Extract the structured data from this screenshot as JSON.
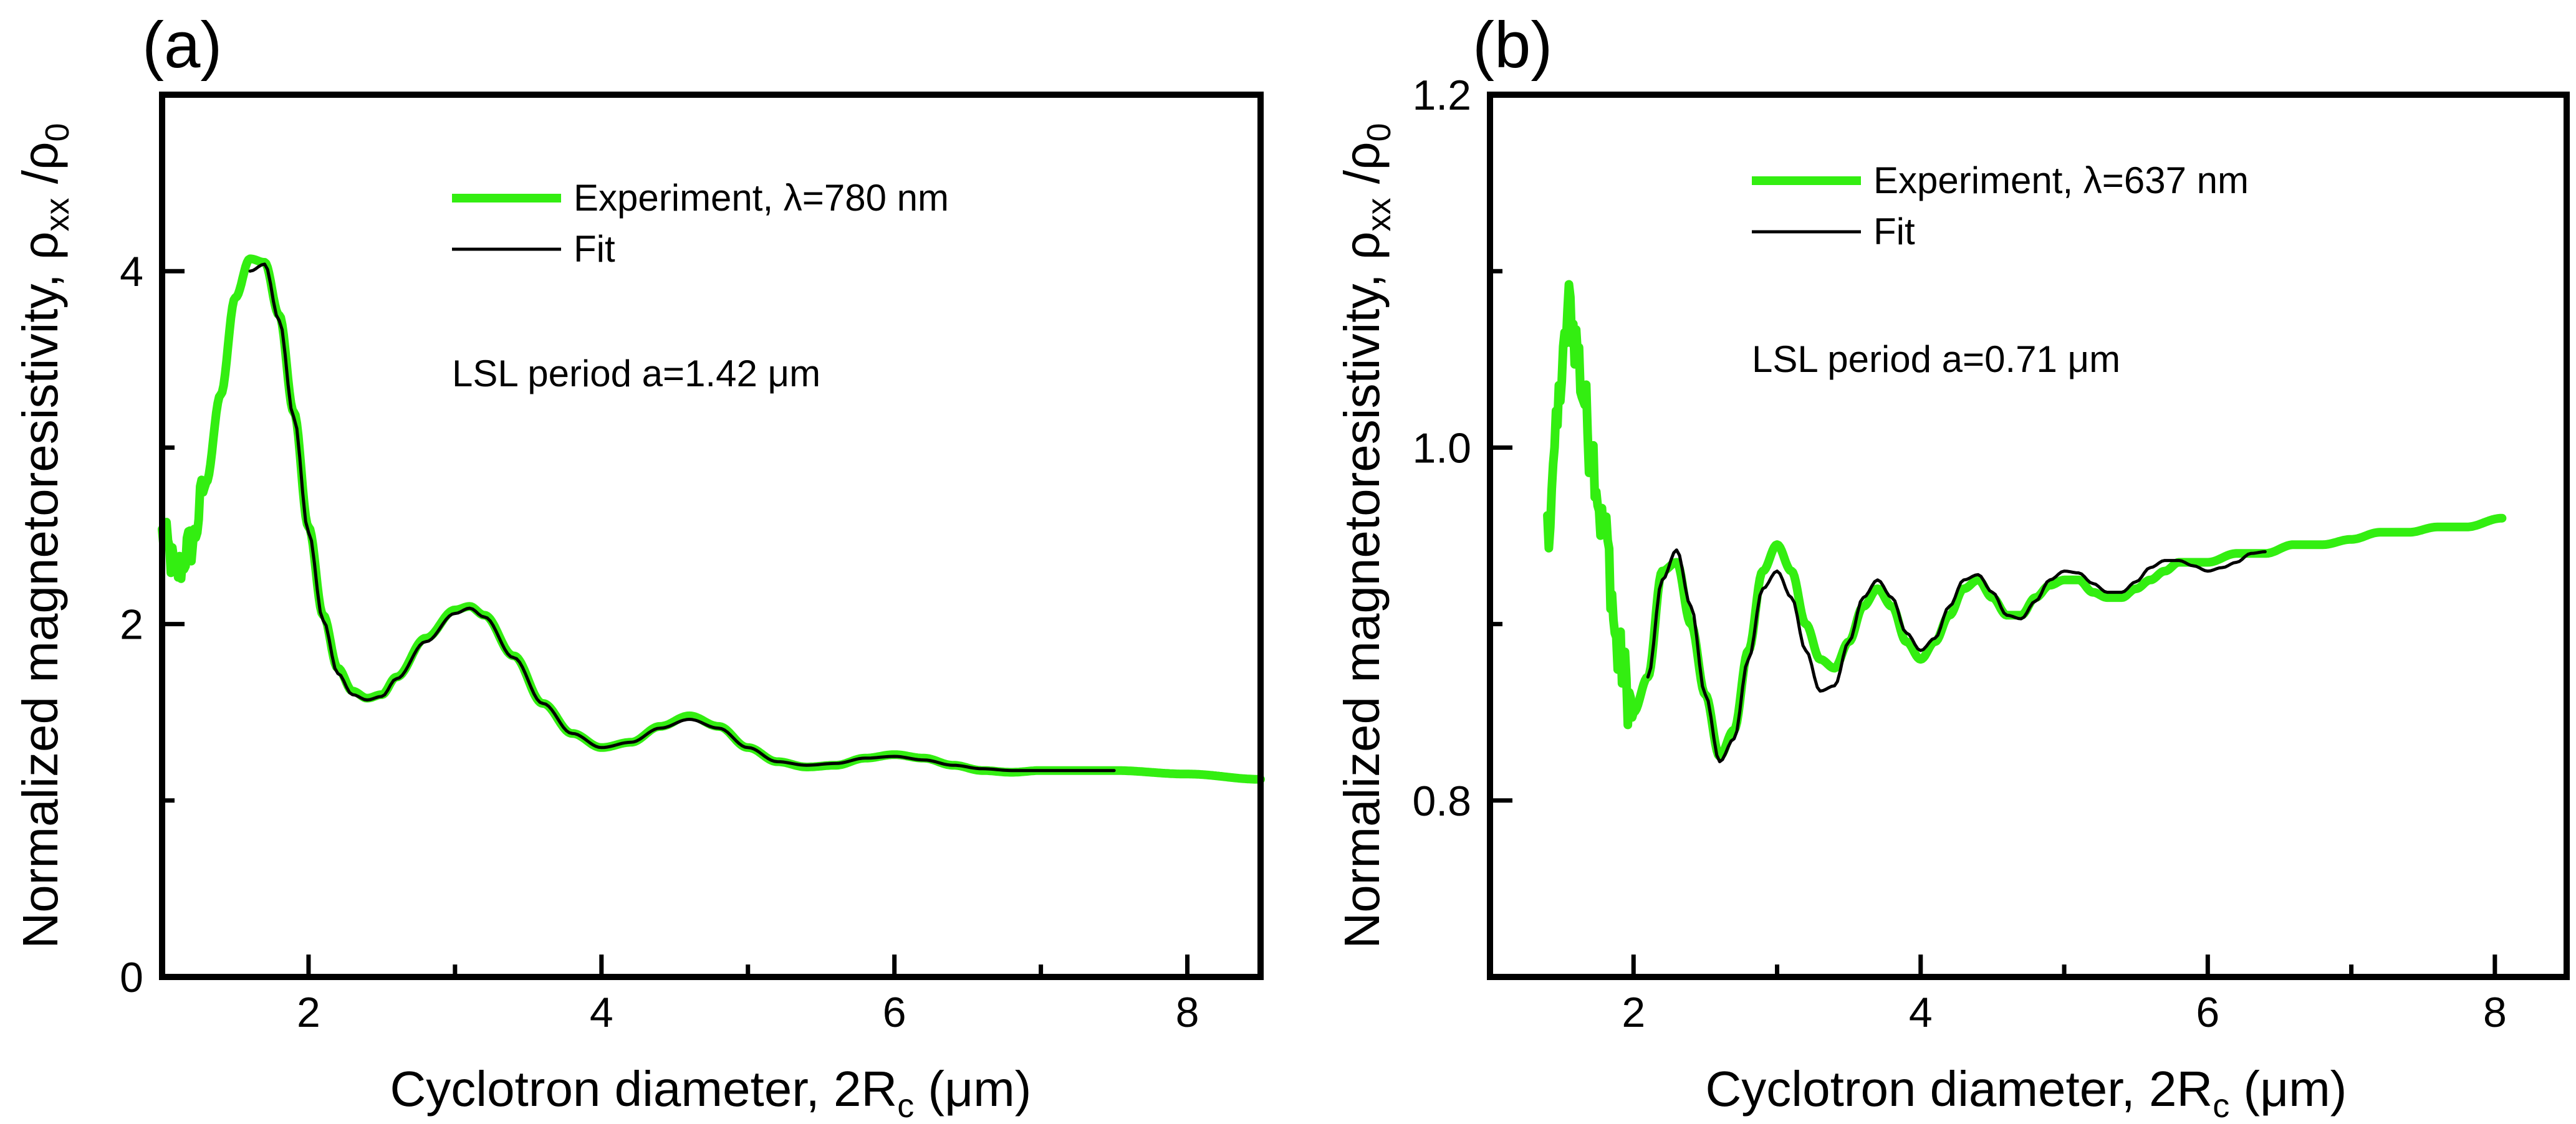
{
  "chart_data": [
    {
      "type": "line",
      "panel_label": "(a)",
      "title": "",
      "xlabel": "Cyclotron diameter, 2R",
      "xlabel_sub": "c",
      "xlabel_unit": " (μm)",
      "ylabel": "Normalized magnetoresistivity, ρ",
      "ylabel_sub": "xx",
      "ylabel_tail": " /ρ",
      "ylabel_tail_sub": "0",
      "xlim": [
        1.0,
        8.5
      ],
      "ylim": [
        0,
        5
      ],
      "xticks": [
        2,
        4,
        6,
        8
      ],
      "xminor": [
        3,
        5,
        7
      ],
      "yticks": [
        0,
        2,
        4
      ],
      "yminor": [
        1,
        3
      ],
      "annotation": "LSL period a=1.42 μm",
      "legend_position": "top-right",
      "series": [
        {
          "name": "Experiment, λ=780 nm",
          "color": "#33ee11",
          "style": "thick",
          "noise_below_x": 1.3,
          "noise_amp": 0.12,
          "x": [
            1.0,
            1.1,
            1.2,
            1.3,
            1.4,
            1.5,
            1.6,
            1.7,
            1.8,
            1.9,
            2.0,
            2.1,
            2.2,
            2.3,
            2.4,
            2.5,
            2.6,
            2.8,
            3.0,
            3.1,
            3.2,
            3.4,
            3.6,
            3.8,
            4.0,
            4.2,
            4.4,
            4.6,
            4.8,
            5.0,
            5.2,
            5.4,
            5.6,
            5.8,
            6.0,
            6.2,
            6.4,
            6.6,
            6.8,
            7.0,
            7.5,
            8.0,
            8.5
          ],
          "y": [
            2.5,
            2.3,
            2.45,
            2.8,
            3.3,
            3.85,
            4.07,
            4.05,
            3.75,
            3.2,
            2.55,
            2.05,
            1.75,
            1.62,
            1.58,
            1.6,
            1.7,
            1.92,
            2.08,
            2.1,
            2.05,
            1.82,
            1.55,
            1.38,
            1.3,
            1.33,
            1.42,
            1.48,
            1.42,
            1.3,
            1.22,
            1.19,
            1.2,
            1.24,
            1.26,
            1.24,
            1.2,
            1.17,
            1.16,
            1.17,
            1.17,
            1.15,
            1.12
          ]
        },
        {
          "name": "Fit",
          "color": "#000000",
          "style": "thin",
          "x": [
            1.6,
            1.7,
            1.8,
            1.9,
            2.0,
            2.1,
            2.2,
            2.3,
            2.4,
            2.5,
            2.6,
            2.8,
            3.0,
            3.1,
            3.2,
            3.4,
            3.6,
            3.8,
            4.0,
            4.2,
            4.4,
            4.6,
            4.8,
            5.0,
            5.2,
            5.4,
            5.6,
            5.8,
            6.0,
            6.2,
            6.4,
            6.6,
            6.8,
            7.0,
            7.5
          ],
          "y": [
            4.0,
            4.04,
            3.72,
            3.17,
            2.52,
            2.02,
            1.72,
            1.6,
            1.57,
            1.59,
            1.69,
            1.9,
            2.06,
            2.09,
            2.04,
            1.81,
            1.55,
            1.38,
            1.3,
            1.33,
            1.41,
            1.46,
            1.41,
            1.3,
            1.22,
            1.2,
            1.21,
            1.24,
            1.25,
            1.23,
            1.2,
            1.18,
            1.17,
            1.17,
            1.17
          ]
        }
      ]
    },
    {
      "type": "line",
      "panel_label": "(b)",
      "title": "",
      "xlabel": "Cyclotron diameter, 2R",
      "xlabel_sub": "c",
      "xlabel_unit": " (μm)",
      "ylabel": "Normalized magnetoresistivity, ρ",
      "ylabel_sub": "xx",
      "ylabel_tail": " /ρ",
      "ylabel_tail_sub": "0",
      "xlim": [
        1.0,
        8.5
      ],
      "ylim": [
        0.7,
        1.2
      ],
      "xticks": [
        2,
        4,
        6,
        8
      ],
      "xminor": [
        3,
        5,
        7
      ],
      "ytick_values": [
        0.8,
        1.0,
        1.2
      ],
      "ytick_labels": [
        "0.8",
        "1.0",
        "1.2"
      ],
      "yminor": [
        0.9,
        1.1
      ],
      "annotation": "LSL period a=0.71 μm",
      "legend_position": "top-right",
      "series": [
        {
          "name": "Experiment, λ=637 nm",
          "color": "#33ee11",
          "style": "thick",
          "noise_below_x": 2.0,
          "noise_amp": 0.018,
          "x": [
            1.4,
            1.45,
            1.5,
            1.55,
            1.6,
            1.65,
            1.7,
            1.8,
            1.9,
            2.0,
            2.1,
            2.2,
            2.3,
            2.4,
            2.5,
            2.6,
            2.7,
            2.8,
            2.9,
            3.0,
            3.1,
            3.2,
            3.3,
            3.4,
            3.5,
            3.6,
            3.7,
            3.8,
            3.9,
            4.0,
            4.1,
            4.2,
            4.3,
            4.4,
            4.5,
            4.6,
            4.7,
            4.8,
            4.9,
            5.0,
            5.1,
            5.2,
            5.3,
            5.4,
            5.5,
            5.6,
            5.7,
            5.8,
            5.9,
            6.0,
            6.2,
            6.4,
            6.6,
            6.8,
            7.0,
            7.2,
            7.4,
            7.6,
            7.8,
            8.05
          ],
          "y": [
            0.95,
            1.0,
            1.04,
            1.08,
            1.06,
            1.03,
            1.0,
            0.95,
            0.88,
            0.85,
            0.87,
            0.93,
            0.935,
            0.9,
            0.86,
            0.825,
            0.84,
            0.885,
            0.93,
            0.945,
            0.93,
            0.9,
            0.88,
            0.875,
            0.89,
            0.91,
            0.92,
            0.91,
            0.89,
            0.88,
            0.89,
            0.905,
            0.92,
            0.925,
            0.915,
            0.905,
            0.905,
            0.915,
            0.922,
            0.925,
            0.925,
            0.918,
            0.915,
            0.915,
            0.92,
            0.925,
            0.93,
            0.935,
            0.935,
            0.935,
            0.94,
            0.94,
            0.945,
            0.945,
            0.948,
            0.952,
            0.952,
            0.955,
            0.955,
            0.96
          ]
        },
        {
          "name": "Fit",
          "color": "#000000",
          "style": "thin",
          "x": [
            2.1,
            2.2,
            2.3,
            2.4,
            2.5,
            2.6,
            2.7,
            2.8,
            2.9,
            3.0,
            3.1,
            3.2,
            3.3,
            3.4,
            3.5,
            3.6,
            3.7,
            3.8,
            3.9,
            4.0,
            4.1,
            4.2,
            4.3,
            4.4,
            4.5,
            4.6,
            4.7,
            4.8,
            4.9,
            5.0,
            5.1,
            5.2,
            5.3,
            5.4,
            5.5,
            5.6,
            5.7,
            5.8,
            5.9,
            6.0,
            6.1,
            6.2,
            6.3,
            6.4
          ],
          "y": [
            0.87,
            0.925,
            0.942,
            0.91,
            0.86,
            0.822,
            0.835,
            0.88,
            0.92,
            0.93,
            0.915,
            0.885,
            0.862,
            0.865,
            0.89,
            0.915,
            0.925,
            0.915,
            0.895,
            0.885,
            0.892,
            0.91,
            0.925,
            0.928,
            0.918,
            0.905,
            0.903,
            0.913,
            0.925,
            0.93,
            0.929,
            0.923,
            0.918,
            0.918,
            0.924,
            0.932,
            0.936,
            0.936,
            0.933,
            0.93,
            0.932,
            0.935,
            0.94,
            0.941
          ]
        }
      ]
    }
  ]
}
